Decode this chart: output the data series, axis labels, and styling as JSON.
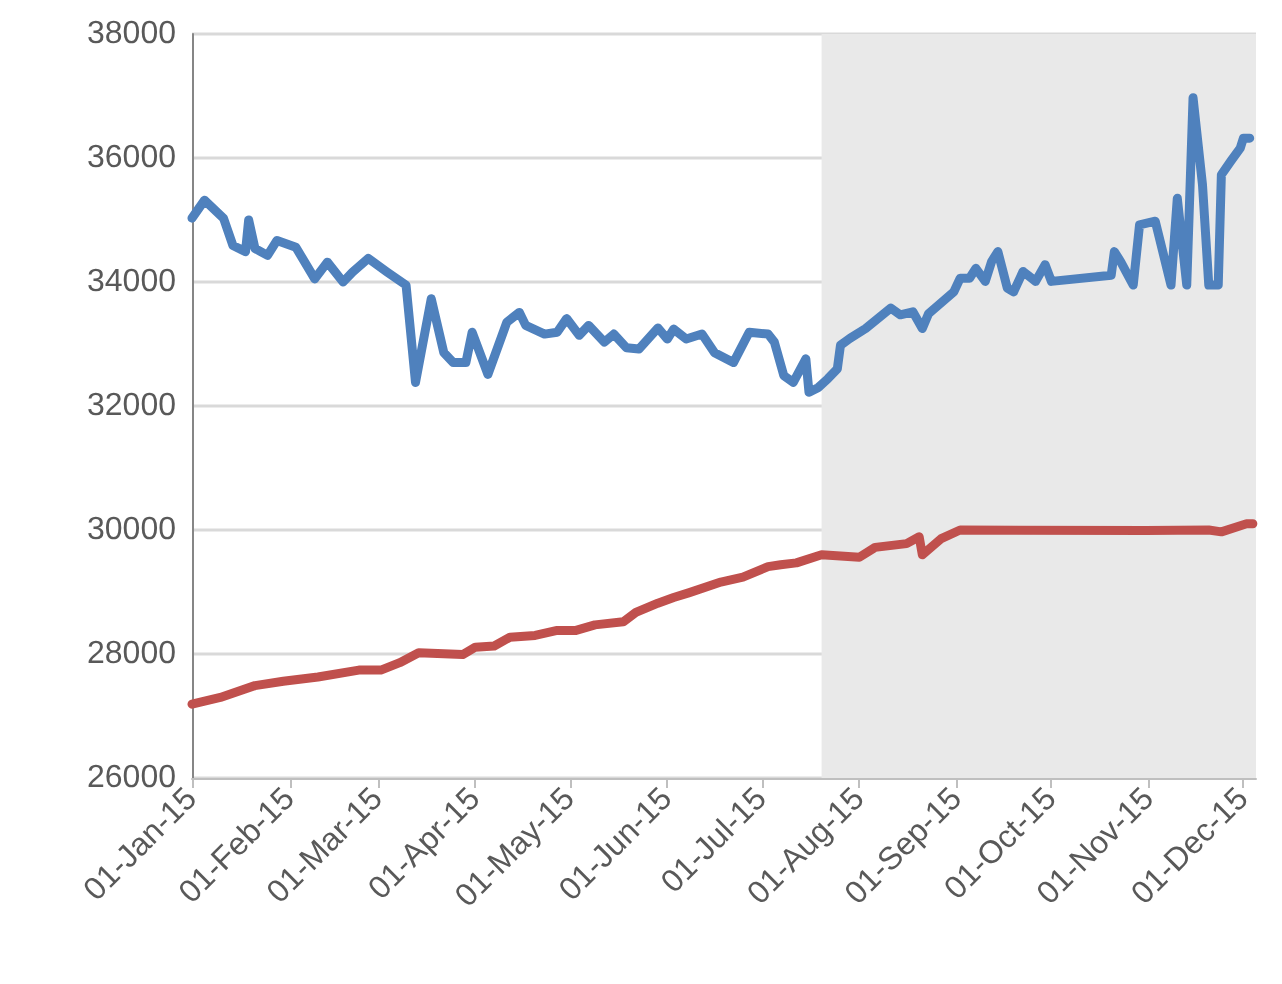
{
  "chart_data": {
    "type": "line",
    "xlim": [
      "2015-01-01",
      "2015-12-05"
    ],
    "xticks": [
      {
        "value": "2015-01-01",
        "label": "01-Jan-15"
      },
      {
        "value": "2015-02-01",
        "label": "01-Feb-15"
      },
      {
        "value": "2015-03-01",
        "label": "01-Mar-15"
      },
      {
        "value": "2015-04-01",
        "label": "01-Apr-15"
      },
      {
        "value": "2015-05-01",
        "label": "01-May-15"
      },
      {
        "value": "2015-06-01",
        "label": "01-Jun-15"
      },
      {
        "value": "2015-07-01",
        "label": "01-Jul-15"
      },
      {
        "value": "2015-08-01",
        "label": "01-Aug-15"
      },
      {
        "value": "2015-09-01",
        "label": "01-Sep-15"
      },
      {
        "value": "2015-10-01",
        "label": "01-Oct-15"
      },
      {
        "value": "2015-11-01",
        "label": "01-Nov-15"
      },
      {
        "value": "2015-12-01",
        "label": "01-Dec-15"
      }
    ],
    "ylim": [
      26000,
      38000
    ],
    "yticks": [
      26000,
      28000,
      30000,
      32000,
      34000,
      36000,
      38000
    ],
    "grid": "y",
    "marker": "none",
    "line_style": "solid",
    "bands": [
      {
        "axis": "x",
        "from": "2015-07-20",
        "to": "2015-12-05",
        "color": "#e9e9e9"
      }
    ],
    "series": [
      {
        "color": "#4f81bd",
        "x": [
          "2015-01-01",
          "2015-01-05",
          "2015-01-11",
          "2015-01-14",
          "2015-01-18",
          "2015-01-19",
          "2015-01-21",
          "2015-01-25",
          "2015-01-28",
          "2015-02-03",
          "2015-02-09",
          "2015-02-13",
          "2015-02-18",
          "2015-02-21",
          "2015-02-26",
          "2015-03-04",
          "2015-03-10",
          "2015-03-13",
          "2015-03-18",
          "2015-03-22",
          "2015-03-25",
          "2015-03-29",
          "2015-03-31",
          "2015-04-05",
          "2015-04-11",
          "2015-04-15",
          "2015-04-17",
          "2015-04-23",
          "2015-04-27",
          "2015-04-30",
          "2015-05-04",
          "2015-05-07",
          "2015-05-12",
          "2015-05-15",
          "2015-05-19",
          "2015-05-23",
          "2015-05-29",
          "2015-06-01",
          "2015-06-03",
          "2015-06-07",
          "2015-06-12",
          "2015-06-16",
          "2015-06-22",
          "2015-06-27",
          "2015-07-03",
          "2015-07-05",
          "2015-07-08",
          "2015-07-11",
          "2015-07-15",
          "2015-07-16",
          "2015-07-19",
          "2015-07-22",
          "2015-07-25",
          "2015-07-26",
          "2015-07-29",
          "2015-08-03",
          "2015-08-11",
          "2015-08-14",
          "2015-08-18",
          "2015-08-21",
          "2015-08-23",
          "2015-08-31",
          "2015-09-02",
          "2015-09-05",
          "2015-09-07",
          "2015-09-10",
          "2015-09-12",
          "2015-09-14",
          "2015-09-17",
          "2015-09-19",
          "2015-09-22",
          "2015-09-26",
          "2015-09-29",
          "2015-10-01",
          "2015-10-20",
          "2015-10-21",
          "2015-10-23",
          "2015-10-27",
          "2015-10-29",
          "2015-11-03",
          "2015-11-08",
          "2015-11-10",
          "2015-11-13",
          "2015-11-15",
          "2015-11-18",
          "2015-11-20",
          "2015-11-23",
          "2015-11-24",
          "2015-11-27",
          "2015-11-30",
          "2015-12-01",
          "2015-12-03"
        ],
        "values": [
          35030,
          35320,
          35030,
          34590,
          34490,
          35000,
          34540,
          34430,
          34670,
          34560,
          34050,
          34320,
          34000,
          34160,
          34380,
          34160,
          33950,
          32380,
          33730,
          32860,
          32700,
          32700,
          33190,
          32510,
          33350,
          33510,
          33300,
          33160,
          33190,
          33410,
          33140,
          33300,
          33030,
          33160,
          32940,
          32920,
          33260,
          33080,
          33240,
          33080,
          33160,
          32860,
          32700,
          33190,
          33160,
          33030,
          32490,
          32380,
          32760,
          32220,
          32300,
          32440,
          32600,
          32980,
          33090,
          33250,
          33580,
          33470,
          33520,
          33250,
          33490,
          33840,
          34060,
          34060,
          34220,
          34010,
          34330,
          34490,
          33900,
          33840,
          34170,
          34010,
          34280,
          34010,
          34110,
          34490,
          34330,
          33950,
          34920,
          34980,
          33950,
          35350,
          33950,
          36970,
          35570,
          33950,
          33950,
          35730,
          35950,
          36160,
          36320,
          36320
        ]
      },
      {
        "color": "#c0504d",
        "x": [
          "2015-01-01",
          "2015-01-10",
          "2015-01-21",
          "2015-01-30",
          "2015-02-10",
          "2015-02-23",
          "2015-03-02",
          "2015-03-08",
          "2015-03-14",
          "2015-03-28",
          "2015-04-01",
          "2015-04-07",
          "2015-04-12",
          "2015-04-20",
          "2015-04-27",
          "2015-05-03",
          "2015-05-09",
          "2015-05-18",
          "2015-05-22",
          "2015-05-29",
          "2015-06-03",
          "2015-06-08",
          "2015-06-18",
          "2015-06-25",
          "2015-07-03",
          "2015-07-07",
          "2015-07-12",
          "2015-07-20",
          "2015-08-01",
          "2015-08-06",
          "2015-08-16",
          "2015-08-20",
          "2015-08-21",
          "2015-08-27",
          "2015-09-02",
          "2015-10-31",
          "2015-11-20",
          "2015-11-24",
          "2015-12-02",
          "2015-12-04"
        ],
        "values": [
          27190,
          27300,
          27490,
          27560,
          27630,
          27740,
          27740,
          27860,
          28020,
          27990,
          28110,
          28130,
          28270,
          28300,
          28380,
          28380,
          28470,
          28520,
          28670,
          28820,
          28910,
          28990,
          29160,
          29240,
          29410,
          29440,
          29470,
          29600,
          29560,
          29720,
          29780,
          29890,
          29600,
          29860,
          30000,
          29990,
          30000,
          29970,
          30100,
          30100
        ]
      }
    ]
  }
}
